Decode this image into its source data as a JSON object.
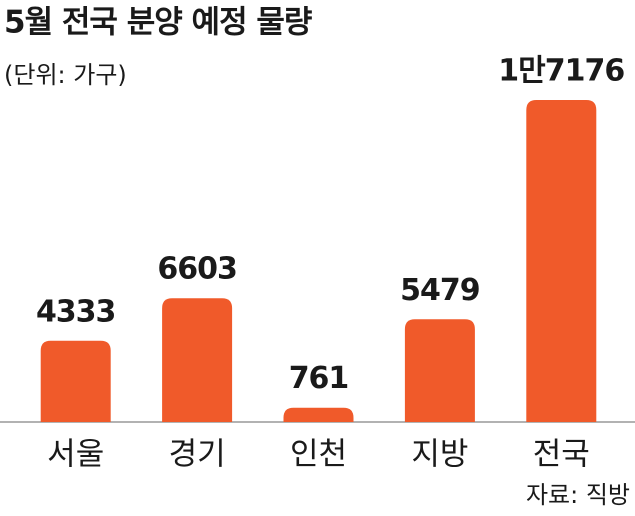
{
  "chart_data": {
    "type": "bar",
    "title": "5월 전국 분양 예정 물량",
    "subtitle": "(단위: 가구)",
    "source": "자료: 직방",
    "categories": [
      "서울",
      "경기",
      "인천",
      "지방",
      "전국"
    ],
    "values": [
      4333,
      6603,
      761,
      5479,
      17176
    ],
    "value_labels": [
      "4333",
      "6603",
      "761",
      "5479",
      "1만7176"
    ],
    "color": "#f05a2a"
  }
}
